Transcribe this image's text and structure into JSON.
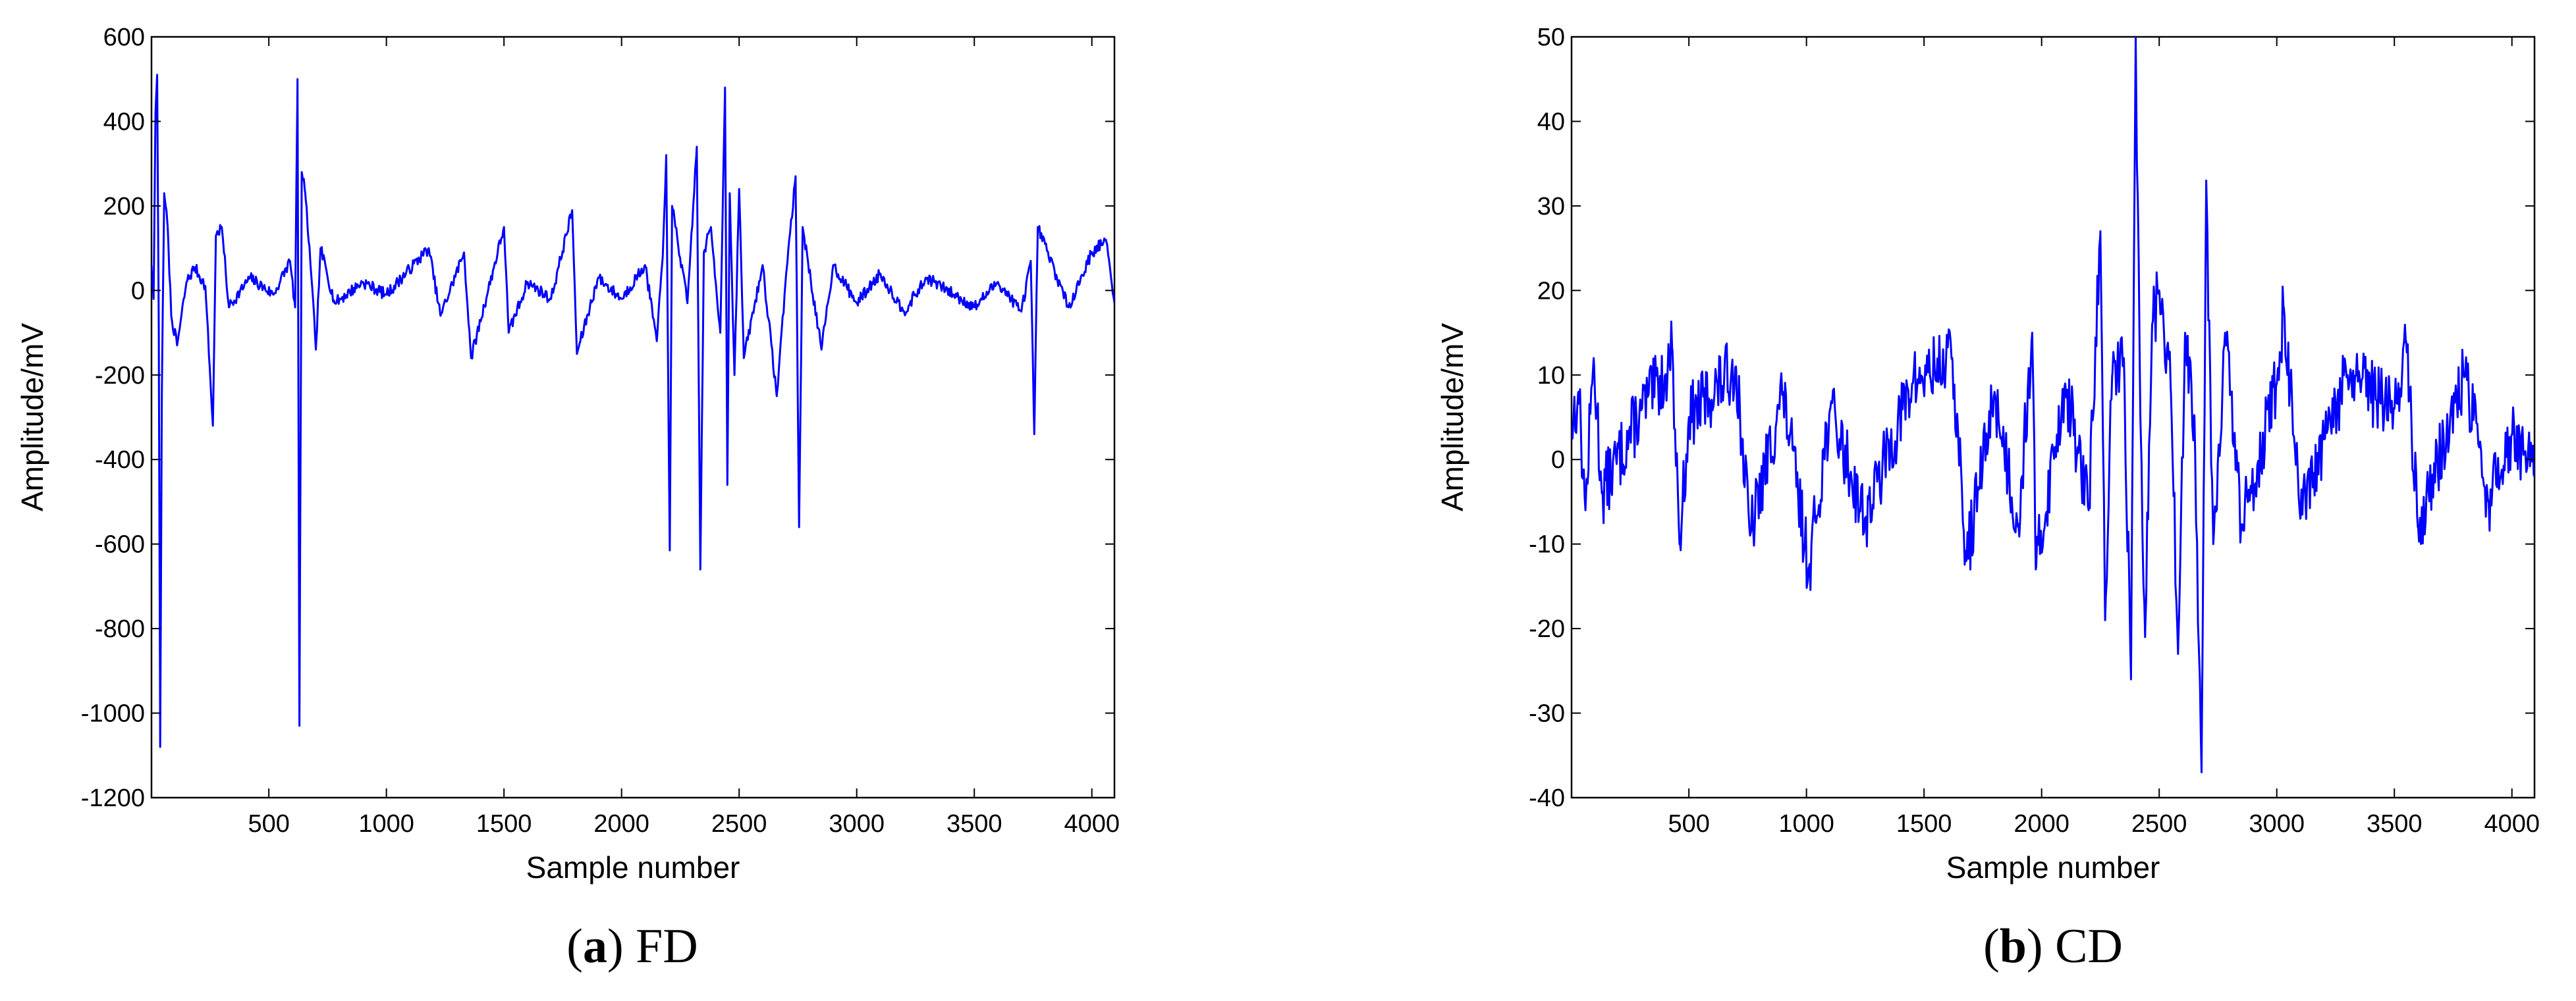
{
  "chart_data": [
    {
      "type": "line",
      "caption_letter": "a",
      "caption_text": "FD",
      "xlabel": "Sample number",
      "ylabel": "Amplitude/mV",
      "xlim": [
        1,
        4096
      ],
      "ylim": [
        -1200,
        600
      ],
      "xticks": [
        500,
        1000,
        1500,
        2000,
        2500,
        3000,
        3500,
        4000
      ],
      "yticks": [
        -1200,
        -1000,
        -800,
        -600,
        -400,
        -200,
        0,
        200,
        400,
        600
      ],
      "grid": false,
      "color": "#0000ff",
      "seed": 7,
      "noise": 14,
      "anchors": [
        [
          1,
          60
        ],
        [
          10,
          -20
        ],
        [
          18,
          420
        ],
        [
          25,
          510
        ],
        [
          32,
          -100
        ],
        [
          38,
          -1080
        ],
        [
          45,
          -250
        ],
        [
          55,
          230
        ],
        [
          70,
          150
        ],
        [
          85,
          -60
        ],
        [
          110,
          -130
        ],
        [
          150,
          20
        ],
        [
          185,
          55
        ],
        [
          230,
          10
        ],
        [
          262,
          -320
        ],
        [
          275,
          130
        ],
        [
          300,
          150
        ],
        [
          330,
          -40
        ],
        [
          420,
          30
        ],
        [
          520,
          -10
        ],
        [
          590,
          70
        ],
        [
          612,
          -40
        ],
        [
          622,
          500
        ],
        [
          630,
          -1030
        ],
        [
          640,
          280
        ],
        [
          655,
          230
        ],
        [
          680,
          40
        ],
        [
          700,
          -140
        ],
        [
          720,
          100
        ],
        [
          780,
          -30
        ],
        [
          900,
          20
        ],
        [
          1000,
          -10
        ],
        [
          1180,
          100
        ],
        [
          1230,
          -60
        ],
        [
          1330,
          90
        ],
        [
          1360,
          -160
        ],
        [
          1500,
          150
        ],
        [
          1520,
          -100
        ],
        [
          1600,
          20
        ],
        [
          1700,
          -20
        ],
        [
          1790,
          190
        ],
        [
          1810,
          -150
        ],
        [
          1900,
          30
        ],
        [
          2000,
          -20
        ],
        [
          2100,
          60
        ],
        [
          2150,
          -120
        ],
        [
          2175,
          80
        ],
        [
          2190,
          320
        ],
        [
          2205,
          -615
        ],
        [
          2215,
          200
        ],
        [
          2280,
          -30
        ],
        [
          2320,
          340
        ],
        [
          2335,
          -660
        ],
        [
          2350,
          90
        ],
        [
          2380,
          150
        ],
        [
          2420,
          -100
        ],
        [
          2440,
          480
        ],
        [
          2450,
          -460
        ],
        [
          2460,
          230
        ],
        [
          2480,
          -200
        ],
        [
          2500,
          240
        ],
        [
          2520,
          -160
        ],
        [
          2600,
          60
        ],
        [
          2660,
          -250
        ],
        [
          2700,
          40
        ],
        [
          2740,
          270
        ],
        [
          2755,
          -560
        ],
        [
          2770,
          150
        ],
        [
          2850,
          -140
        ],
        [
          2900,
          60
        ],
        [
          3000,
          -30
        ],
        [
          3100,
          40
        ],
        [
          3200,
          -50
        ],
        [
          3300,
          30
        ],
        [
          3500,
          -40
        ],
        [
          3600,
          20
        ],
        [
          3700,
          -50
        ],
        [
          3740,
          70
        ],
        [
          3755,
          -340
        ],
        [
          3770,
          150
        ],
        [
          3900,
          -40
        ],
        [
          4000,
          90
        ],
        [
          4060,
          120
        ],
        [
          4096,
          -30
        ]
      ]
    },
    {
      "type": "line",
      "caption_letter": "b",
      "caption_text": "CD",
      "xlabel": "Sample number",
      "ylabel": "Amplitude/mV",
      "xlim": [
        1,
        4096
      ],
      "ylim": [
        -40,
        50
      ],
      "xticks": [
        500,
        1000,
        1500,
        2000,
        2500,
        3000,
        3500,
        4000
      ],
      "yticks": [
        -40,
        -30,
        -20,
        -10,
        0,
        10,
        20,
        30,
        40,
        50
      ],
      "grid": false,
      "color": "#0000ff",
      "seed": 13,
      "noise": 4,
      "anchors": [
        [
          1,
          4
        ],
        [
          30,
          8
        ],
        [
          60,
          -6
        ],
        [
          95,
          12
        ],
        [
          130,
          -4
        ],
        [
          300,
          6
        ],
        [
          400,
          10
        ],
        [
          430,
          13
        ],
        [
          460,
          -10
        ],
        [
          500,
          5
        ],
        [
          700,
          11
        ],
        [
          760,
          -9
        ],
        [
          900,
          8
        ],
        [
          1010,
          -13
        ],
        [
          1100,
          6
        ],
        [
          1250,
          -7
        ],
        [
          1450,
          9
        ],
        [
          1620,
          12
        ],
        [
          1680,
          -12
        ],
        [
          1800,
          8
        ],
        [
          1900,
          -8
        ],
        [
          1960,
          15
        ],
        [
          1975,
          -13
        ],
        [
          2100,
          9
        ],
        [
          2200,
          -6
        ],
        [
          2250,
          27
        ],
        [
          2270,
          -19
        ],
        [
          2300,
          10
        ],
        [
          2350,
          12
        ],
        [
          2380,
          -26
        ],
        [
          2400,
          50
        ],
        [
          2420,
          5
        ],
        [
          2440,
          -21
        ],
        [
          2470,
          16
        ],
        [
          2500,
          20
        ],
        [
          2550,
          8
        ],
        [
          2580,
          -23
        ],
        [
          2610,
          15
        ],
        [
          2650,
          5
        ],
        [
          2680,
          -37
        ],
        [
          2700,
          33
        ],
        [
          2730,
          -10
        ],
        [
          2780,
          15
        ],
        [
          2850,
          -8
        ],
        [
          3000,
          9
        ],
        [
          3030,
          18
        ],
        [
          3100,
          -7
        ],
        [
          3300,
          10
        ],
        [
          3500,
          6
        ],
        [
          3550,
          14
        ],
        [
          3600,
          -8
        ],
        [
          3800,
          10
        ],
        [
          3900,
          -5
        ],
        [
          4000,
          3
        ],
        [
          4096,
          -2
        ]
      ]
    }
  ]
}
